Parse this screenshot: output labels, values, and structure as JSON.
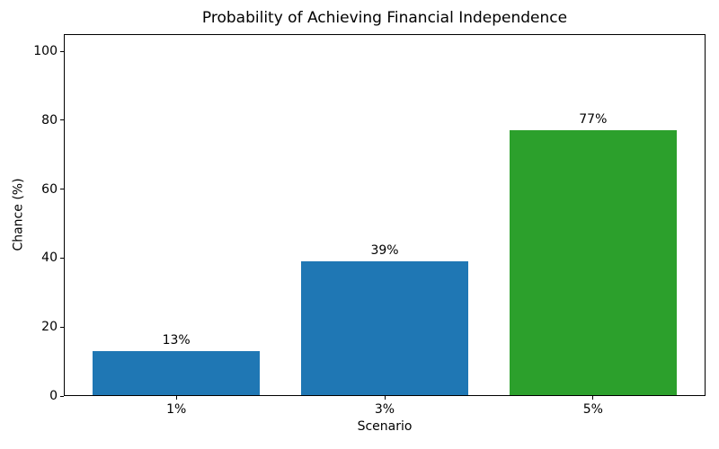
{
  "chart_data": {
    "type": "bar",
    "title": "Probability of Achieving Financial Independence",
    "xlabel": "Scenario",
    "ylabel": "Chance (%)",
    "categories": [
      "1%",
      "3%",
      "5%"
    ],
    "values": [
      13,
      39,
      77
    ],
    "value_labels": [
      "13%",
      "39%",
      "77%"
    ],
    "yticks": [
      0,
      20,
      40,
      60,
      80,
      100
    ],
    "ylim": [
      0,
      105
    ],
    "bar_colors": [
      "#1f77b4",
      "#1f77b4",
      "#2ca02c"
    ],
    "grid": false,
    "legend": null,
    "background_color": "#ffffff",
    "spine_color": "#000000",
    "text_color": "#000000"
  }
}
